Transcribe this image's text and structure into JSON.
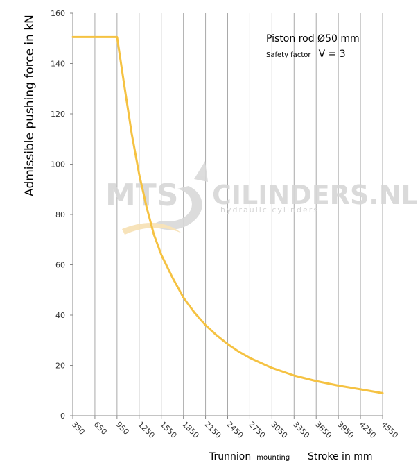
{
  "chart_data": {
    "type": "line",
    "ylabel": "Admissible pushing force in kN",
    "xlabel_main": "Trunnion",
    "xlabel_small": "mounting",
    "xlabel_right": "Stroke in mm",
    "annotation_line1": "Piston rod Ø50 mm",
    "annotation_line2_small": "Safety factor",
    "annotation_line2_big": "V = 3",
    "watermark_left": "MTS",
    "watermark_right": "CILINDERS.NL",
    "watermark_sub": "hydraulic cylinders",
    "ylim": [
      0,
      160
    ],
    "yticks": [
      "0",
      "20",
      "40",
      "60",
      "80",
      "100",
      "120",
      "140",
      "160"
    ],
    "xlim": [
      350,
      4550
    ],
    "xticks": [
      "350",
      "650",
      "950",
      "1250",
      "1550",
      "1850",
      "2150",
      "2450",
      "2750",
      "3050",
      "3350",
      "3650",
      "3950",
      "4250",
      "4550"
    ],
    "grid": "vertical",
    "series": [
      {
        "color": "#f5c242",
        "x": [
          350,
          650,
          950,
          1050,
          1150,
          1250,
          1350,
          1450,
          1550,
          1700,
          1850,
          2000,
          2150,
          2300,
          2450,
          2600,
          2750,
          2900,
          3050,
          3350,
          3650,
          3950,
          4250,
          4550
        ],
        "values": [
          150.5,
          150.5,
          150.5,
          131,
          112,
          96,
          83,
          72,
          64,
          55,
          47,
          41,
          36,
          32,
          28.5,
          25.5,
          23,
          21,
          19,
          16,
          13.8,
          12,
          10.5,
          9
        ]
      }
    ]
  }
}
